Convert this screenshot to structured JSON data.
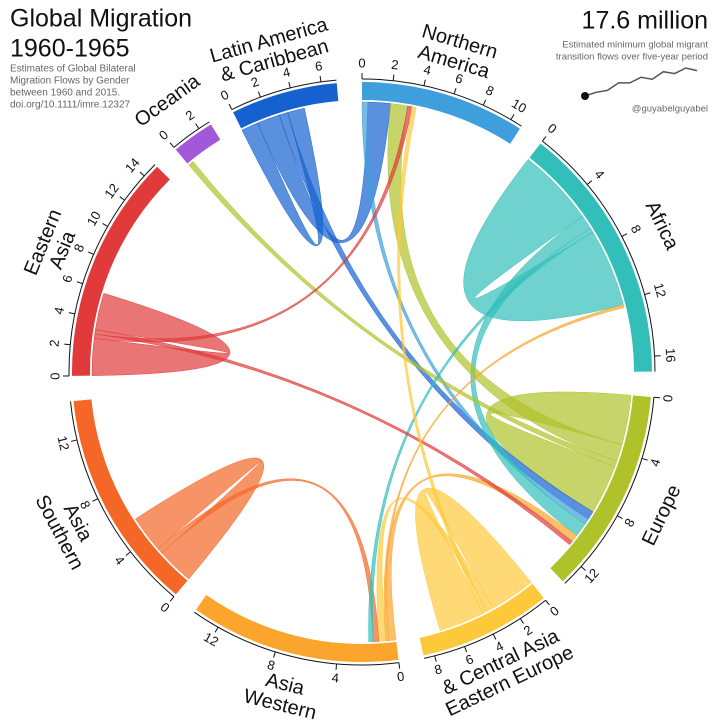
{
  "chart_data": {
    "type": "chord",
    "title": "Global Migration",
    "subtitle": "1960-1965",
    "description": [
      "Estimates of Global Bilateral",
      "Migration Flows by Gender",
      "between 1960 and 2015.",
      "doi.org/10.1111/imre.12327"
    ],
    "total_label": "17.6 million",
    "total_note": [
      "Estimated minimum global migrant",
      "transition flows over five-year period"
    ],
    "credit": "@guyabelguyabel",
    "trend": {
      "values": [
        0.2,
        0.3,
        0.35,
        0.55,
        0.55,
        0.7,
        0.65,
        0.85,
        0.8,
        0.95,
        0.88
      ],
      "color": "#555555"
    },
    "regions": [
      {
        "name": [
          "Northern",
          "America"
        ],
        "color": "#3f9fdc",
        "total": 10.8,
        "ticks": [
          0,
          2,
          4,
          6,
          8,
          10
        ]
      },
      {
        "name": [
          "Africa"
        ],
        "color": "#33bfb9",
        "total": 17,
        "ticks": [
          0,
          4,
          8,
          12,
          16
        ]
      },
      {
        "name": [
          "Europe"
        ],
        "color": "#afc22a",
        "total": 13.5,
        "ticks": [
          0,
          4,
          8,
          12
        ]
      },
      {
        "name": [
          "Eastern Europe",
          "& Central Asia"
        ],
        "color": "#fdc93a",
        "total": 8.7,
        "ticks": [
          0,
          2,
          4,
          6,
          8
        ]
      },
      {
        "name": [
          "Western",
          "Asia"
        ],
        "color": "#fba52c",
        "total": 13.8,
        "ticks": [
          0,
          4,
          8,
          12
        ]
      },
      {
        "name": [
          "Southern",
          "Asia"
        ],
        "color": "#f46727",
        "total": 14.5,
        "ticks": [
          0,
          4,
          8,
          12
        ]
      },
      {
        "name": [
          "Eastern",
          "Asia"
        ],
        "color": "#e03a3a",
        "total": 15,
        "ticks": [
          0,
          2,
          4,
          6,
          8,
          10,
          12,
          14
        ]
      },
      {
        "name": [
          "Oceania"
        ],
        "color": "#a259d9",
        "total": 2.8,
        "ticks": [
          0,
          2
        ]
      },
      {
        "name": [
          "Latin America",
          "& Caribbean"
        ],
        "color": "#1461cf",
        "total": 7,
        "ticks": [
          0,
          2,
          4,
          6
        ]
      }
    ],
    "flows": [
      {
        "from": 1,
        "to": 1,
        "value": 5.5
      },
      {
        "from": 2,
        "to": 2,
        "value": 3.5
      },
      {
        "from": 3,
        "to": 3,
        "value": 3.2
      },
      {
        "from": 5,
        "to": 5,
        "value": 2.6
      },
      {
        "from": 6,
        "to": 6,
        "value": 2.6
      },
      {
        "from": 8,
        "to": 8,
        "value": 1.2
      },
      {
        "from": 8,
        "to": 0,
        "value": 1.6
      },
      {
        "from": 8,
        "to": 2,
        "value": 0.6
      },
      {
        "from": 0,
        "to": 2,
        "value": 0.4
      },
      {
        "from": 1,
        "to": 2,
        "value": 1.0
      },
      {
        "from": 2,
        "to": 0,
        "value": 1.2
      },
      {
        "from": 2,
        "to": 7,
        "value": 0.4
      },
      {
        "from": 6,
        "to": 0,
        "value": 0.3
      },
      {
        "from": 4,
        "to": 2,
        "value": 0.5
      },
      {
        "from": 3,
        "to": 4,
        "value": 0.5
      },
      {
        "from": 5,
        "to": 4,
        "value": 0.4
      },
      {
        "from": 4,
        "to": 1,
        "value": 0.2
      },
      {
        "from": 1,
        "to": 4,
        "value": 0.3
      },
      {
        "from": 6,
        "to": 2,
        "value": 0.3
      },
      {
        "from": 3,
        "to": 0,
        "value": 0.3
      }
    ]
  }
}
